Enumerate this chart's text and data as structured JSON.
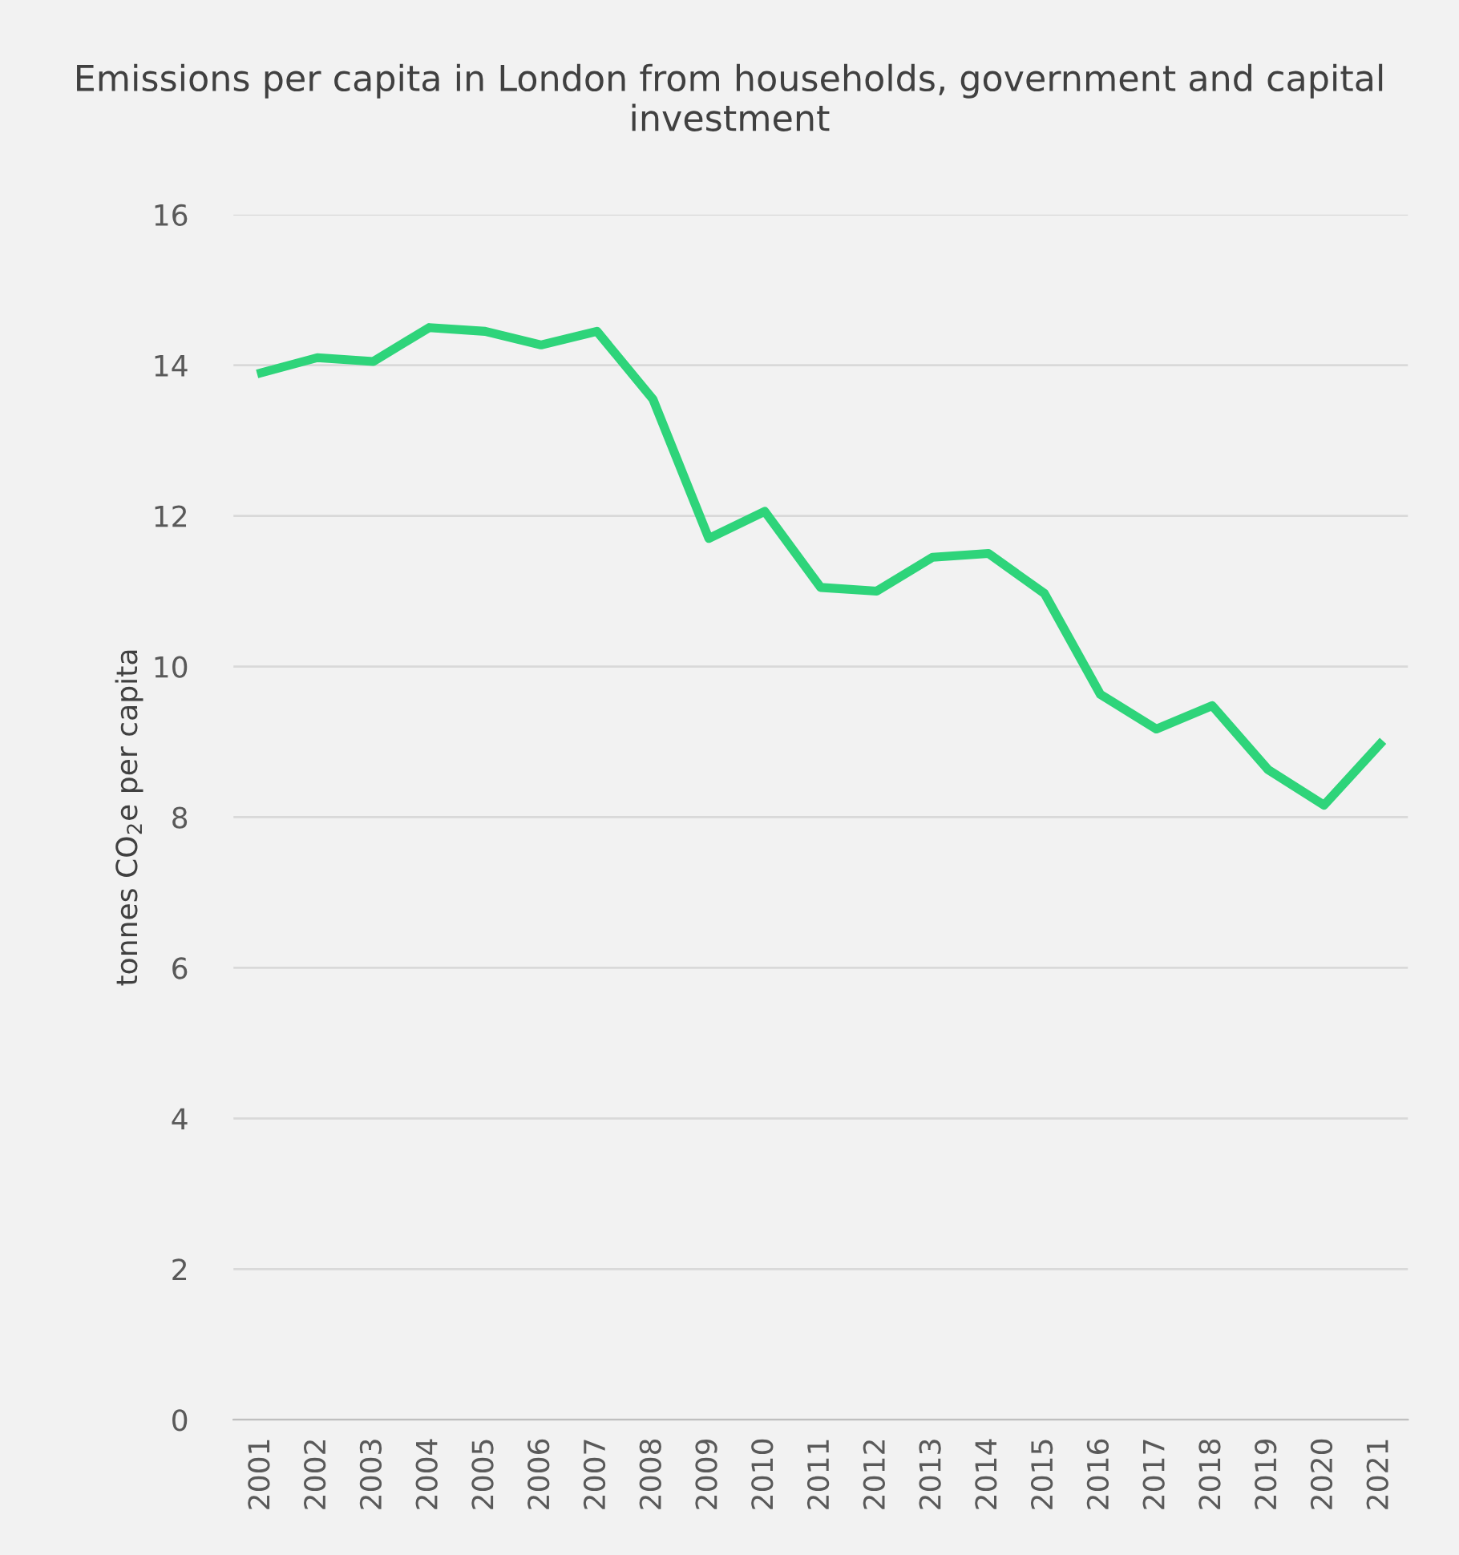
{
  "chart_data": {
    "type": "line",
    "title": "Emissions per capita in London from households, government and capital investment",
    "ylabel": "tonnes CO$_{2}$e per capita",
    "categories": [
      "2001",
      "2002",
      "2003",
      "2004",
      "2005",
      "2006",
      "2007",
      "2008",
      "2009",
      "2010",
      "2011",
      "2012",
      "2013",
      "2014",
      "2015",
      "2016",
      "2017",
      "2018",
      "2019",
      "2020",
      "2021"
    ],
    "series": [
      {
        "color": "#2ed47a",
        "values": [
          13.9,
          14.1,
          14.05,
          14.5,
          14.45,
          14.27,
          14.45,
          13.55,
          11.7,
          12.06,
          11.05,
          11.0,
          11.45,
          11.5,
          10.97,
          9.63,
          9.17,
          9.48,
          8.63,
          8.16,
          8.97
        ]
      }
    ],
    "ylim": [
      0,
      16
    ],
    "yticks": [
      0,
      2,
      4,
      6,
      8,
      10,
      12,
      14,
      16
    ],
    "grid": "y",
    "legend": false,
    "marker": "none",
    "line_style": "solid"
  }
}
